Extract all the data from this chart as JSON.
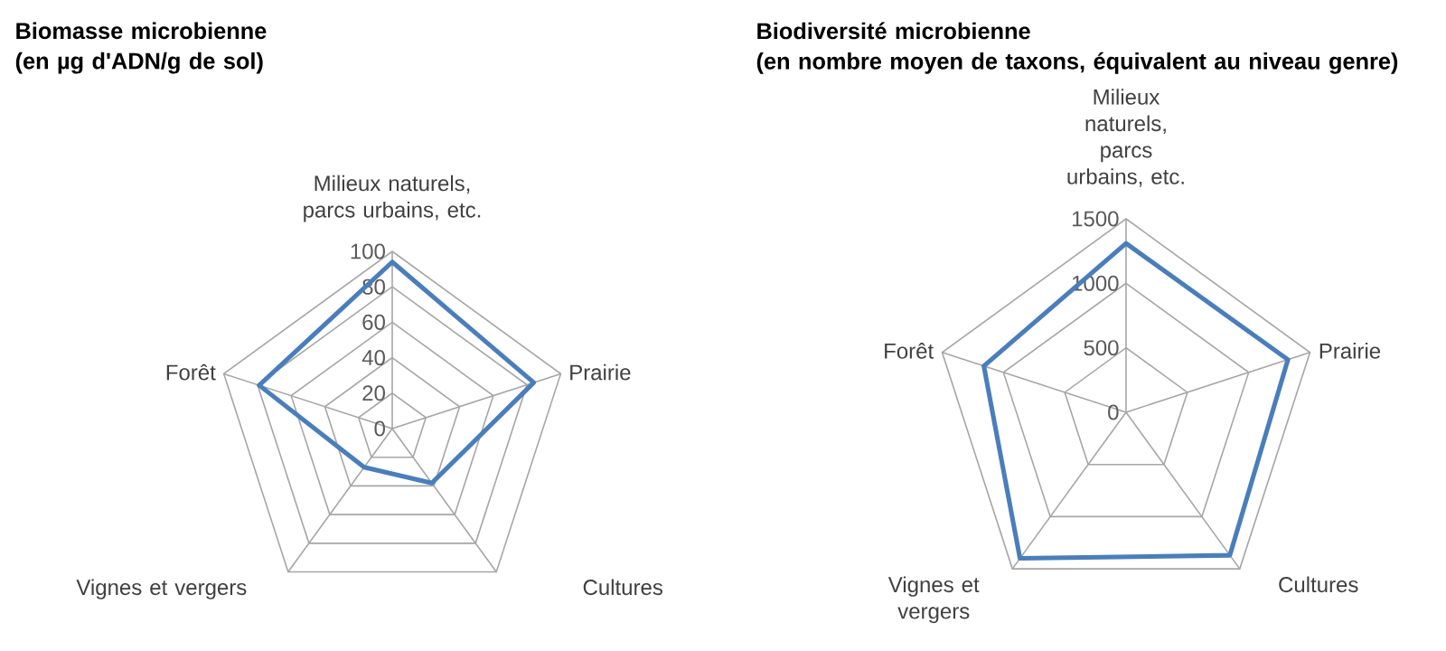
{
  "chart_data": [
    {
      "type": "radar",
      "title": "Biomasse microbienne",
      "subtitle": "(en µg d'ADN/g de sol)",
      "categories": [
        "Milieux naturels, parcs urbains, etc.",
        "Prairie",
        "Cultures",
        "Vignes et vergers",
        "Forêt"
      ],
      "series": [
        {
          "color": "#4a7ebb",
          "values": [
            94,
            84,
            38,
            27,
            79
          ]
        }
      ],
      "ylim": [
        0,
        100
      ],
      "yticks": [
        0,
        20,
        40,
        60,
        80,
        100
      ],
      "grid": true
    },
    {
      "type": "radar",
      "title": "Biodiversité microbienne",
      "subtitle": "(en nombre moyen de taxons, équivalent au niveau genre)",
      "categories": [
        "Milieux naturels, parcs urbains, etc.",
        "Prairie",
        "Cultures",
        "Vignes et vergers",
        "Forêt"
      ],
      "series": [
        {
          "color": "#4a7ebb",
          "values": [
            1310,
            1320,
            1370,
            1400,
            1160
          ]
        }
      ],
      "ylim": [
        0,
        1500
      ],
      "yticks": [
        0,
        500,
        1000,
        1500
      ],
      "grid": true
    }
  ]
}
